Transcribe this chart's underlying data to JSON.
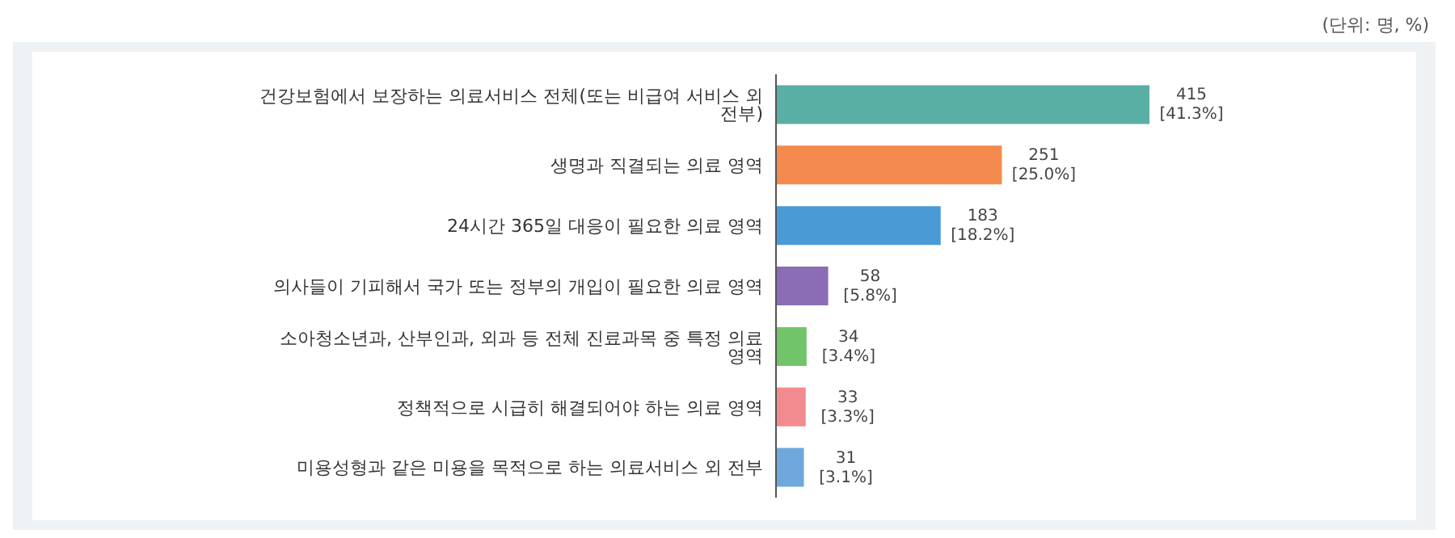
{
  "chart_data": {
    "type": "bar",
    "orientation": "horizontal",
    "categories": [
      "건강보험에서 보장하는 의료서비스 전체(또는 비급여 서비스 외 전부)",
      "생명과 직결되는 의료 영역",
      "24시간 365일 대응이 필요한 의료 영역",
      "의사들이 기피해서 국가 또는 정부의 개입이 필요한 의료 영역",
      "소아청소년과, 산부인과, 외과 등 전체 진료과목 중 특정 의료 영역",
      "정책적으로 시급히 해결되어야 하는 의료 영역",
      "미용성형과 같은 미용을 목적으로 하는 의료서비스 외 전부"
    ],
    "values": [
      415,
      251,
      183,
      58,
      34,
      33,
      31
    ],
    "colors": [
      "#5aafa5",
      "#f58a4e",
      "#4a9ad6",
      "#8a6db5",
      "#72c46a",
      "#f28b8f",
      "#6fa8dc"
    ],
    "value_labels": [
      "415\n[41.3%]",
      "251\n[25.0%]",
      "183\n[18.2%]",
      "58\n[5.8%]",
      "34\n[3.4%]",
      "33\n[3.3%]",
      "31\n[3.1%]"
    ],
    "annotations": [
      "(단위: 명, %)"
    ],
    "grid": false,
    "legend": false
  }
}
